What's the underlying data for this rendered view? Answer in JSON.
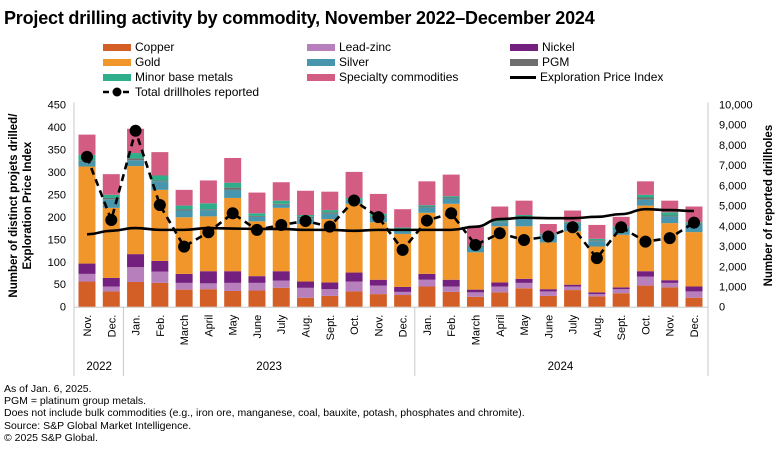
{
  "title": "Project drilling activity by commodity, November 2022–December 2024",
  "legend": [
    {
      "key": "copper",
      "label": "Copper",
      "kind": "swatch"
    },
    {
      "key": "lead_zinc",
      "label": "Lead-zinc",
      "kind": "swatch"
    },
    {
      "key": "nickel",
      "label": "Nickel",
      "kind": "swatch"
    },
    {
      "key": "gold",
      "label": "Gold",
      "kind": "swatch"
    },
    {
      "key": "silver",
      "label": "Silver",
      "kind": "swatch"
    },
    {
      "key": "pgm",
      "label": "PGM",
      "kind": "swatch"
    },
    {
      "key": "minor_base",
      "label": "Minor base metals",
      "kind": "swatch"
    },
    {
      "key": "specialty",
      "label": "Specialty commodities",
      "kind": "swatch"
    },
    {
      "key": "epi",
      "label": "Exploration Price Index",
      "kind": "line"
    },
    {
      "key": "drillholes",
      "label": "Total drillholes reported",
      "kind": "dashed-dots"
    }
  ],
  "colors": {
    "copper": "#d35f27",
    "lead_zinc": "#b77fbc",
    "nickel": "#74207f",
    "gold": "#f0962a",
    "silver": "#4896ad",
    "pgm": "#6e6e6e",
    "minor_base": "#2fae8c",
    "specialty": "#d35d82",
    "epi": "#000000",
    "drillholes": "#000000",
    "axis": "#c8c8c8"
  },
  "footnotes": [
    "As of Jan. 6, 2025.",
    "PGM = platinum group metals.",
    "Does not include bulk commodities (e.g., iron ore, manganese, coal, bauxite, potash, phosphates and chromite).",
    "Source: S&P Global Market Intelligence.",
    "© 2025 S&P Global."
  ],
  "chart_data": {
    "type": "bar",
    "stacked": true,
    "title": "Project drilling activity by commodity, November 2022–December 2024",
    "ylabel": "Number of distinct projets drilled/ Exploration Price Index",
    "y2label": "Number of reported drillholes",
    "ylim": [
      0,
      450
    ],
    "yticks": [
      0,
      50,
      100,
      150,
      200,
      250,
      300,
      350,
      400,
      450
    ],
    "y2lim": [
      0,
      10000
    ],
    "y2ticks": [
      "0",
      "1,000",
      "2,000",
      "3,000",
      "4,000",
      "5,000",
      "6,000",
      "7,000",
      "8,000",
      "9,000",
      "10,000"
    ],
    "grid": false,
    "legend_position": "top",
    "categories": [
      "Nov.",
      "Dec.",
      "Jan.",
      "Feb.",
      "March",
      "April",
      "May",
      "June",
      "July",
      "Aug.",
      "Sept.",
      "Oct.",
      "Nov.",
      "Dec.",
      "Jan.",
      "Feb.",
      "March",
      "April",
      "May",
      "June",
      "July",
      "Aug.",
      "Sept.",
      "Oct.",
      "Nov.",
      "Dec."
    ],
    "year_groups": [
      {
        "label": "2022",
        "count": 2
      },
      {
        "label": "2023",
        "count": 12
      },
      {
        "label": "2024",
        "count": 12
      }
    ],
    "series": [
      {
        "key": "copper",
        "name": "Copper",
        "values": [
          56,
          34,
          55,
          53,
          38,
          39,
          35,
          36,
          42,
          20,
          24,
          34,
          28,
          26,
          45,
          33,
          22,
          32,
          41,
          24,
          37,
          23,
          30,
          47,
          43,
          20
        ]
      },
      {
        "key": "lead_zinc",
        "name": "Lead-zinc",
        "values": [
          17,
          11,
          33,
          25,
          15,
          13,
          18,
          17,
          16,
          22,
          15,
          22,
          19,
          7,
          15,
          12,
          10,
          13,
          12,
          10,
          8,
          5,
          9,
          20,
          10,
          14
        ]
      },
      {
        "key": "nickel",
        "name": "Nickel",
        "values": [
          23,
          19,
          29,
          24,
          20,
          27,
          26,
          15,
          21,
          14,
          15,
          20,
          13,
          11,
          13,
          15,
          6,
          9,
          9,
          5,
          4,
          4,
          4,
          12,
          6,
          11
        ]
      },
      {
        "key": "gold",
        "name": "Gold",
        "values": [
          216,
          156,
          196,
          158,
          126,
          122,
          163,
          122,
          141,
          128,
          141,
          153,
          128,
          118,
          136,
          169,
          83,
          125,
          117,
          104,
          119,
          102,
          117,
          146,
          127,
          121
        ]
      },
      {
        "key": "silver",
        "name": "Silver",
        "values": [
          11,
          19,
          13,
          19,
          15,
          14,
          18,
          10,
          7,
          13,
          12,
          7,
          12,
          9,
          12,
          12,
          11,
          9,
          20,
          16,
          17,
          12,
          14,
          13,
          15,
          17
        ]
      },
      {
        "key": "pgm",
        "name": "PGM",
        "values": [
          2,
          3,
          4,
          2,
          3,
          2,
          5,
          2,
          2,
          3,
          3,
          2,
          2,
          2,
          2,
          2,
          2,
          2,
          2,
          2,
          2,
          2,
          2,
          5,
          2,
          2
        ]
      },
      {
        "key": "minor_base",
        "name": "Minor base metals",
        "values": [
          13,
          7,
          12,
          11,
          8,
          13,
          11,
          6,
          7,
          4,
          5,
          4,
          5,
          3,
          3,
          3,
          2,
          3,
          3,
          2,
          2,
          3,
          3,
          6,
          7,
          3
        ]
      },
      {
        "key": "specialty",
        "name": "Specialty commodities",
        "values": [
          45,
          46,
          54,
          52,
          35,
          51,
          55,
          46,
          41,
          54,
          41,
          58,
          44,
          41,
          53,
          48,
          41,
          30,
          32,
          21,
          25,
          31,
          21,
          30,
          26,
          35
        ]
      }
    ],
    "lines": [
      {
        "key": "epi",
        "name": "Exploration Price Index",
        "axis": "left",
        "style": "solid",
        "values": [
          161,
          169,
          175,
          171,
          171,
          175,
          174,
          173,
          173,
          171,
          171,
          169,
          171,
          171,
          171,
          171,
          178,
          195,
          198,
          197,
          197,
          200,
          206,
          217,
          215,
          213
        ]
      },
      {
        "key": "drillholes",
        "name": "Total drillholes reported",
        "axis": "right",
        "style": "dashed-markers",
        "values": [
          7410,
          4290,
          8700,
          5030,
          2970,
          3680,
          4620,
          3800,
          4040,
          4240,
          3960,
          5250,
          4430,
          2810,
          4260,
          4620,
          3050,
          3630,
          3300,
          3470,
          3930,
          2400,
          3930,
          3220,
          3390,
          4160
        ]
      }
    ]
  }
}
